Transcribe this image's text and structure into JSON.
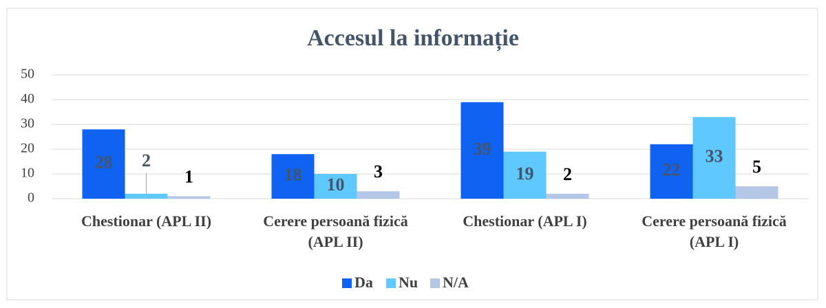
{
  "chart_data": {
    "type": "bar",
    "title": "Accesul la informație",
    "categories": [
      "Chestionar (APL II)",
      "Cerere persoană fizică (APL II)",
      "Chestionar (APL I)",
      "Cerere persoană fizică (APL I)"
    ],
    "series": [
      {
        "name": "Da",
        "color": "#0f62f2",
        "values": [
          28,
          18,
          39,
          22
        ]
      },
      {
        "name": "Nu",
        "color": "#5ec8ff",
        "values": [
          2,
          10,
          19,
          33
        ]
      },
      {
        "name": "N/A",
        "color": "#b4c7e7",
        "values": [
          1,
          3,
          2,
          5
        ]
      }
    ],
    "ylim": [
      0,
      50
    ],
    "yticks": [
      0,
      10,
      20,
      30,
      40,
      50
    ],
    "grid": true,
    "legend": "bottom"
  }
}
